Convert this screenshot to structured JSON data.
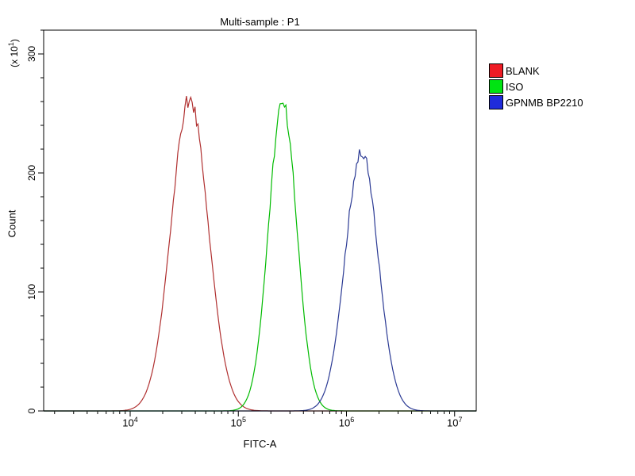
{
  "title": "Multi-sample : P1",
  "axes": {
    "y_unit_prefix": "(x 10",
    "y_unit_sup": "1",
    "y_unit_suffix": ")",
    "x_tick_base": "10"
  },
  "chart_data": {
    "type": "line",
    "subtype": "flow-cytometry-histogram-overlay",
    "title": "Multi-sample : P1",
    "xlabel": "FITC-A",
    "ylabel": "Count",
    "y_unit_label": "(x 10^1)",
    "x_scale": "log10",
    "x_range_log10": [
      3.2,
      7.2
    ],
    "x_tick_exponents": [
      4,
      5,
      6,
      7
    ],
    "ylim": [
      0,
      320
    ],
    "y_ticks": [
      0,
      100,
      200,
      300
    ],
    "y_minor_tick_step": 20,
    "grid": false,
    "legend_position": "right",
    "series": [
      {
        "name": "BLANK",
        "legend_color": "#ee1c25",
        "line_color": "#b03030",
        "peak_center_log10": 4.55,
        "peak_center_value": 35000,
        "sigma_log10": 0.17,
        "peak_height": 262
      },
      {
        "name": "ISO",
        "legend_color": "#00e412",
        "line_color": "#00bb00",
        "peak_center_log10": 5.41,
        "peak_center_value": 260000,
        "sigma_log10": 0.13,
        "peak_height": 259
      },
      {
        "name": "GPNMB BP2210",
        "legend_color": "#1f2bdb",
        "line_color": "#2b3a94",
        "peak_center_log10": 6.14,
        "peak_center_value": 1380000,
        "sigma_log10": 0.15,
        "peak_height": 219
      }
    ]
  }
}
